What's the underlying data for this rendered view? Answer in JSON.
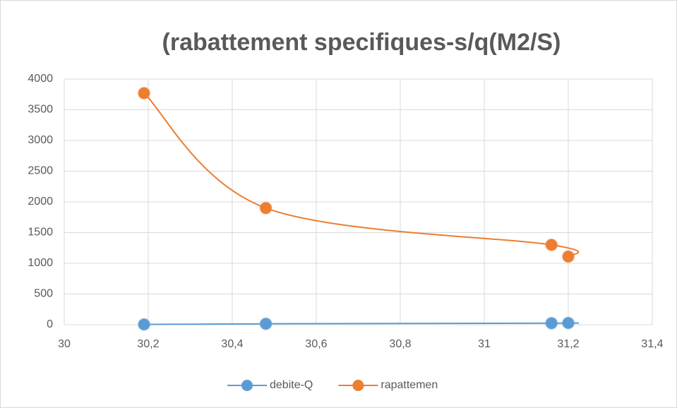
{
  "chart_data": {
    "type": "scatter",
    "title": "(rabattement specifiques-s/q(M2/S)",
    "smooth": true,
    "grid": true,
    "legend": "bottom",
    "xlim": [
      30,
      31.4
    ],
    "xticks": [
      30,
      {
        "value": 30.2,
        "label": "30,2"
      },
      {
        "value": 30.4,
        "label": "30,4"
      },
      {
        "value": 30.6,
        "label": "30,6"
      },
      {
        "value": 30.8,
        "label": "30,8"
      },
      31,
      {
        "value": 31.2,
        "label": "31,2"
      },
      {
        "value": 31.4,
        "label": "31,4"
      }
    ],
    "ylim": [
      0,
      4000
    ],
    "yticks": [
      0,
      500,
      1000,
      1500,
      2000,
      2500,
      3000,
      3500,
      4000
    ],
    "series": [
      {
        "name": "debite-Q",
        "color": "#5b9bd5",
        "x": [
          30.19,
          30.48,
          31.16,
          31.2
        ],
        "values": [
          5,
          15,
          25,
          28
        ]
      },
      {
        "name": "rapattemen",
        "color": "#ed7d31",
        "x": [
          30.19,
          30.48,
          31.16,
          31.2
        ],
        "values": [
          3770,
          1900,
          1300,
          1110
        ]
      }
    ]
  }
}
